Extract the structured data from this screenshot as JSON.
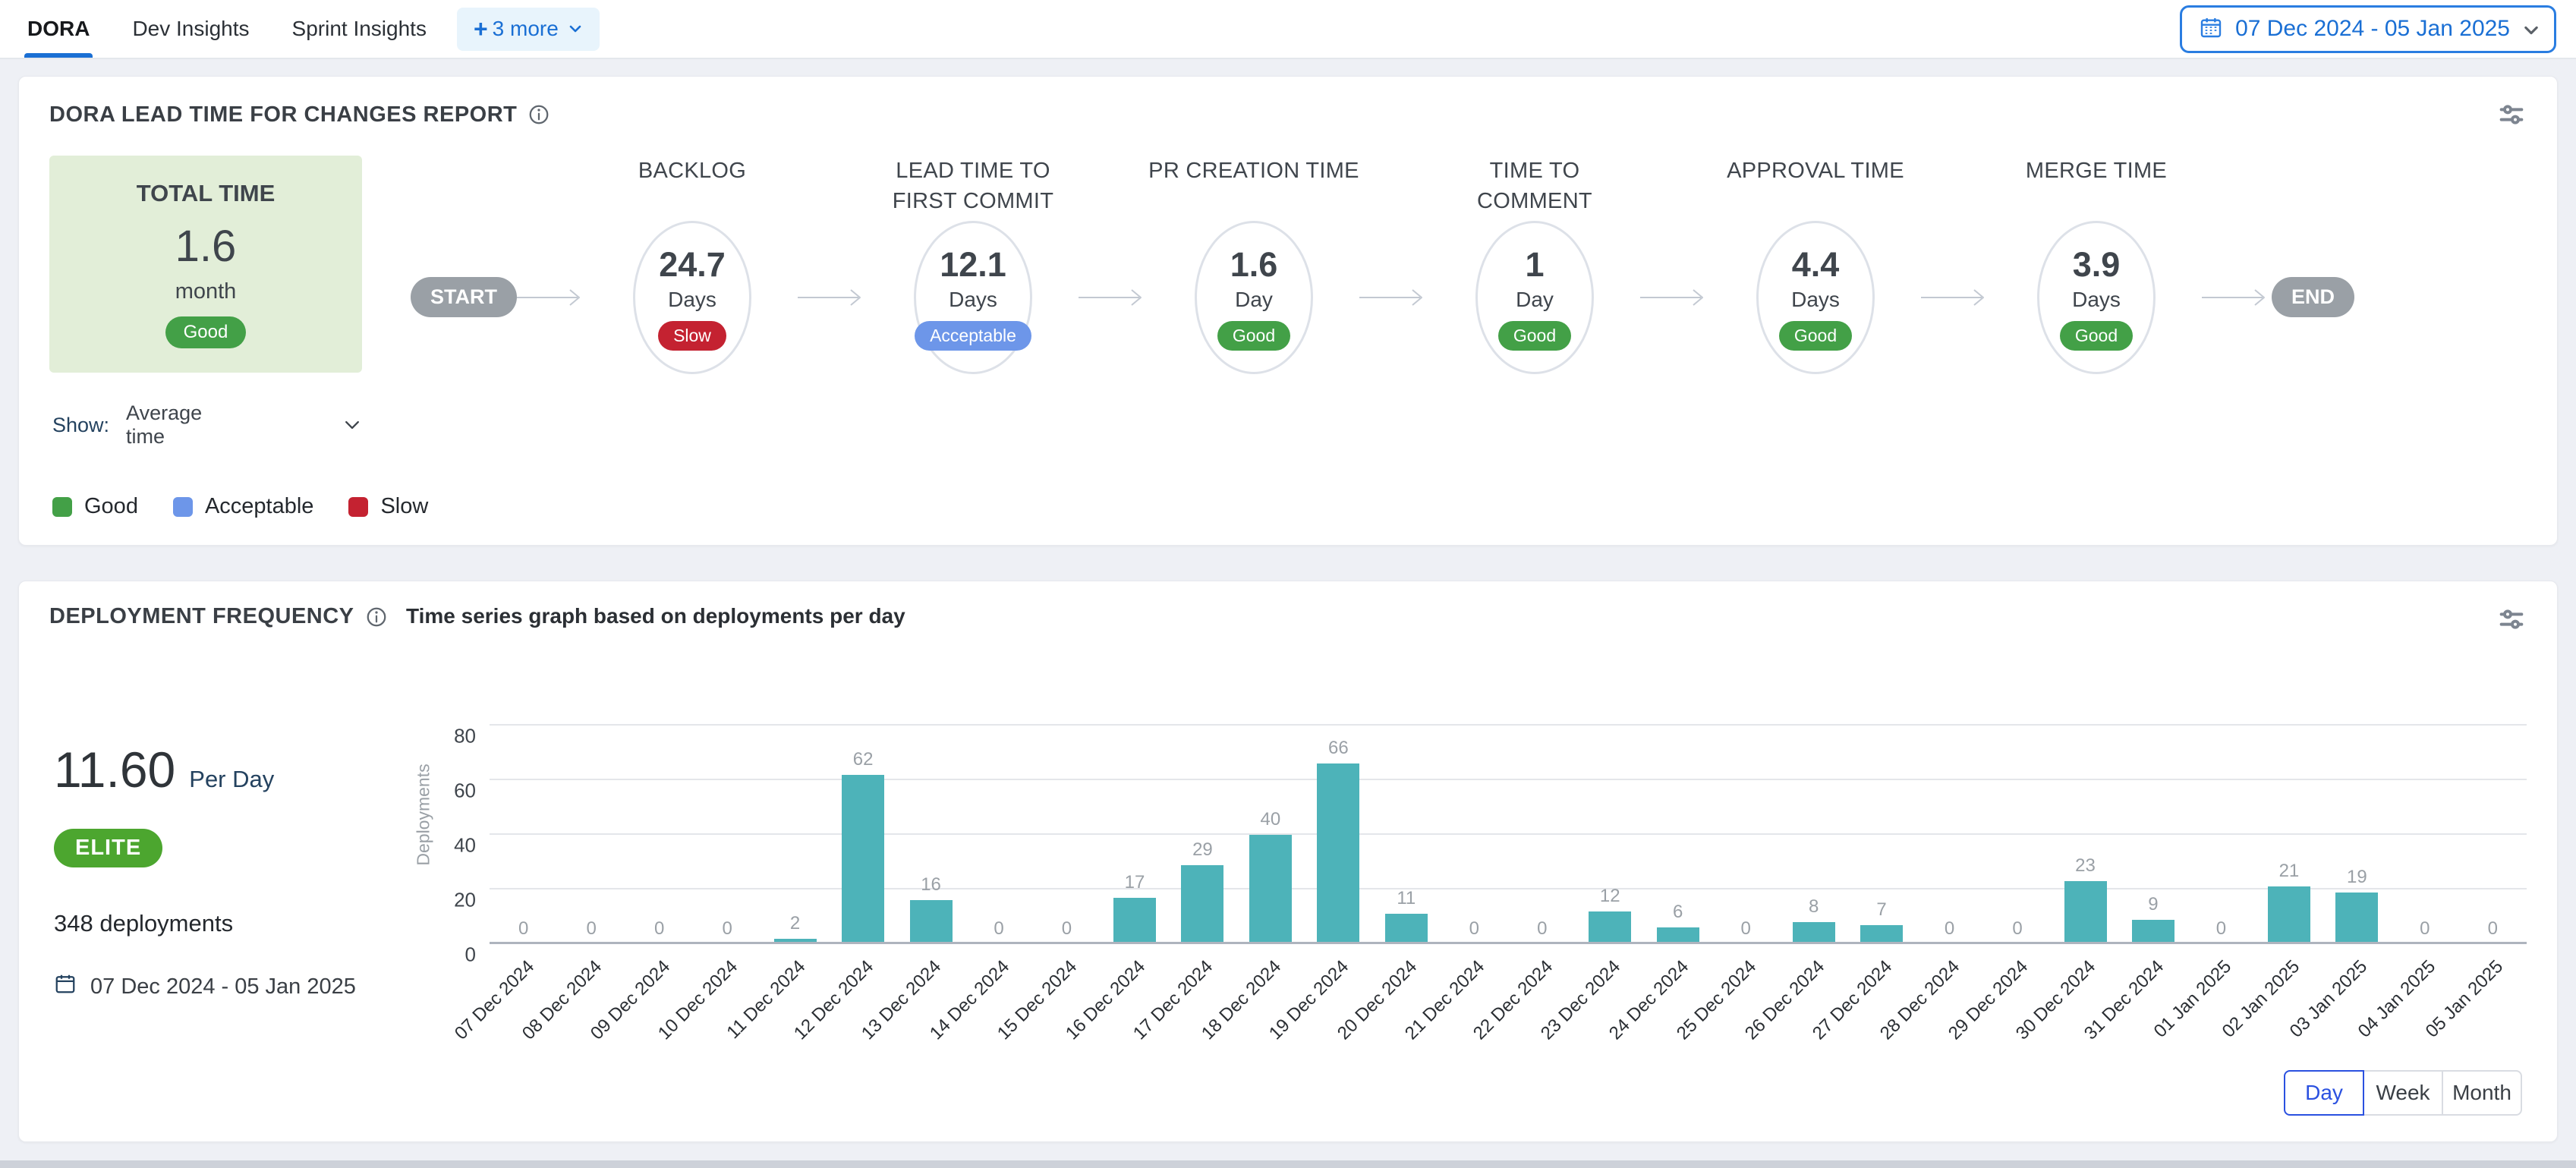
{
  "tabs": {
    "items": [
      {
        "label": "DORA",
        "active": true
      },
      {
        "label": "Dev Insights",
        "active": false
      },
      {
        "label": "Sprint Insights",
        "active": false
      }
    ],
    "more_label": "+3 more"
  },
  "date_picker": {
    "label": "07 Dec 2024 - 05 Jan 2025"
  },
  "status_colors": {
    "Good": "#43a047",
    "Acceptable": "#6d96e9",
    "Slow": "#c42231"
  },
  "lead_time_card": {
    "title": "DORA LEAD TIME FOR CHANGES REPORT",
    "total": {
      "label": "TOTAL TIME",
      "value": "1.6",
      "unit": "month",
      "status": "Good"
    },
    "show_label": "Show:",
    "show_value": "Average time",
    "start_label": "START",
    "end_label": "END",
    "stages": [
      {
        "title": "BACKLOG",
        "value": "24.7",
        "unit": "Days",
        "status": "Slow"
      },
      {
        "title": "LEAD TIME TO FIRST COMMIT",
        "value": "12.1",
        "unit": "Days",
        "status": "Acceptable"
      },
      {
        "title": "PR CREATION TIME",
        "value": "1.6",
        "unit": "Day",
        "status": "Good"
      },
      {
        "title": "TIME TO COMMENT",
        "value": "1",
        "unit": "Day",
        "status": "Good"
      },
      {
        "title": "APPROVAL TIME",
        "value": "4.4",
        "unit": "Days",
        "status": "Good"
      },
      {
        "title": "MERGE TIME",
        "value": "3.9",
        "unit": "Days",
        "status": "Good"
      }
    ],
    "legend": [
      {
        "label": "Good",
        "color": "#43a047"
      },
      {
        "label": "Acceptable",
        "color": "#6d96e9"
      },
      {
        "label": "Slow",
        "color": "#c42231"
      }
    ]
  },
  "deployment_card": {
    "title": "DEPLOYMENT FREQUENCY",
    "rate_value": "11.60",
    "rate_unit": "Per Day",
    "tier": "ELITE",
    "total_label": "348 deployments",
    "date_range": "07 Dec 2024 - 05 Jan 2025",
    "granularity": [
      "Day",
      "Week",
      "Month"
    ],
    "granularity_active": "Day"
  },
  "chart_data": {
    "type": "bar",
    "title": "Time series graph based on deployments per day",
    "xlabel": "",
    "ylabel": "Deployments",
    "ylim": [
      0,
      80
    ],
    "yticks": [
      0,
      20,
      40,
      60,
      80
    ],
    "grid": true,
    "bar_color": "#4db3b9",
    "categories": [
      "07 Dec 2024",
      "08 Dec 2024",
      "09 Dec 2024",
      "10 Dec 2024",
      "11 Dec 2024",
      "12 Dec 2024",
      "13 Dec 2024",
      "14 Dec 2024",
      "15 Dec 2024",
      "16 Dec 2024",
      "17 Dec 2024",
      "18 Dec 2024",
      "19 Dec 2024",
      "20 Dec 2024",
      "21 Dec 2024",
      "22 Dec 2024",
      "23 Dec 2024",
      "24 Dec 2024",
      "25 Dec 2024",
      "26 Dec 2024",
      "27 Dec 2024",
      "28 Dec 2024",
      "29 Dec 2024",
      "30 Dec 2024",
      "31 Dec 2024",
      "01 Jan 2025",
      "02 Jan 2025",
      "03 Jan 2025",
      "04 Jan 2025",
      "05 Jan 2025"
    ],
    "values": [
      0,
      0,
      0,
      0,
      2,
      62,
      16,
      0,
      0,
      17,
      29,
      40,
      66,
      11,
      0,
      0,
      12,
      6,
      0,
      8,
      7,
      0,
      0,
      23,
      9,
      0,
      21,
      19,
      0,
      0
    ]
  }
}
